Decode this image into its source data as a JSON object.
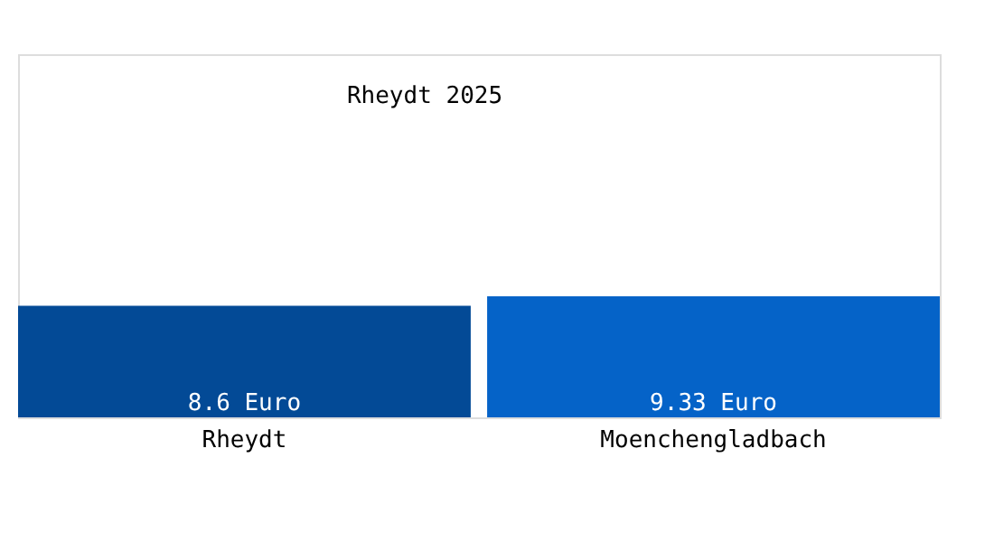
{
  "chart_data": {
    "type": "bar",
    "title": "Rheydt 2025",
    "categories": [
      "Rheydt",
      "Moenchengladbach"
    ],
    "values": [
      8.6,
      9.33
    ],
    "colors": [
      "#034a96",
      "#0563c8"
    ],
    "value_labels": [
      "8.6 Euro",
      "9.33 Euro"
    ],
    "ylim": [
      0,
      28
    ],
    "grid": false,
    "tick_labels": "x"
  }
}
